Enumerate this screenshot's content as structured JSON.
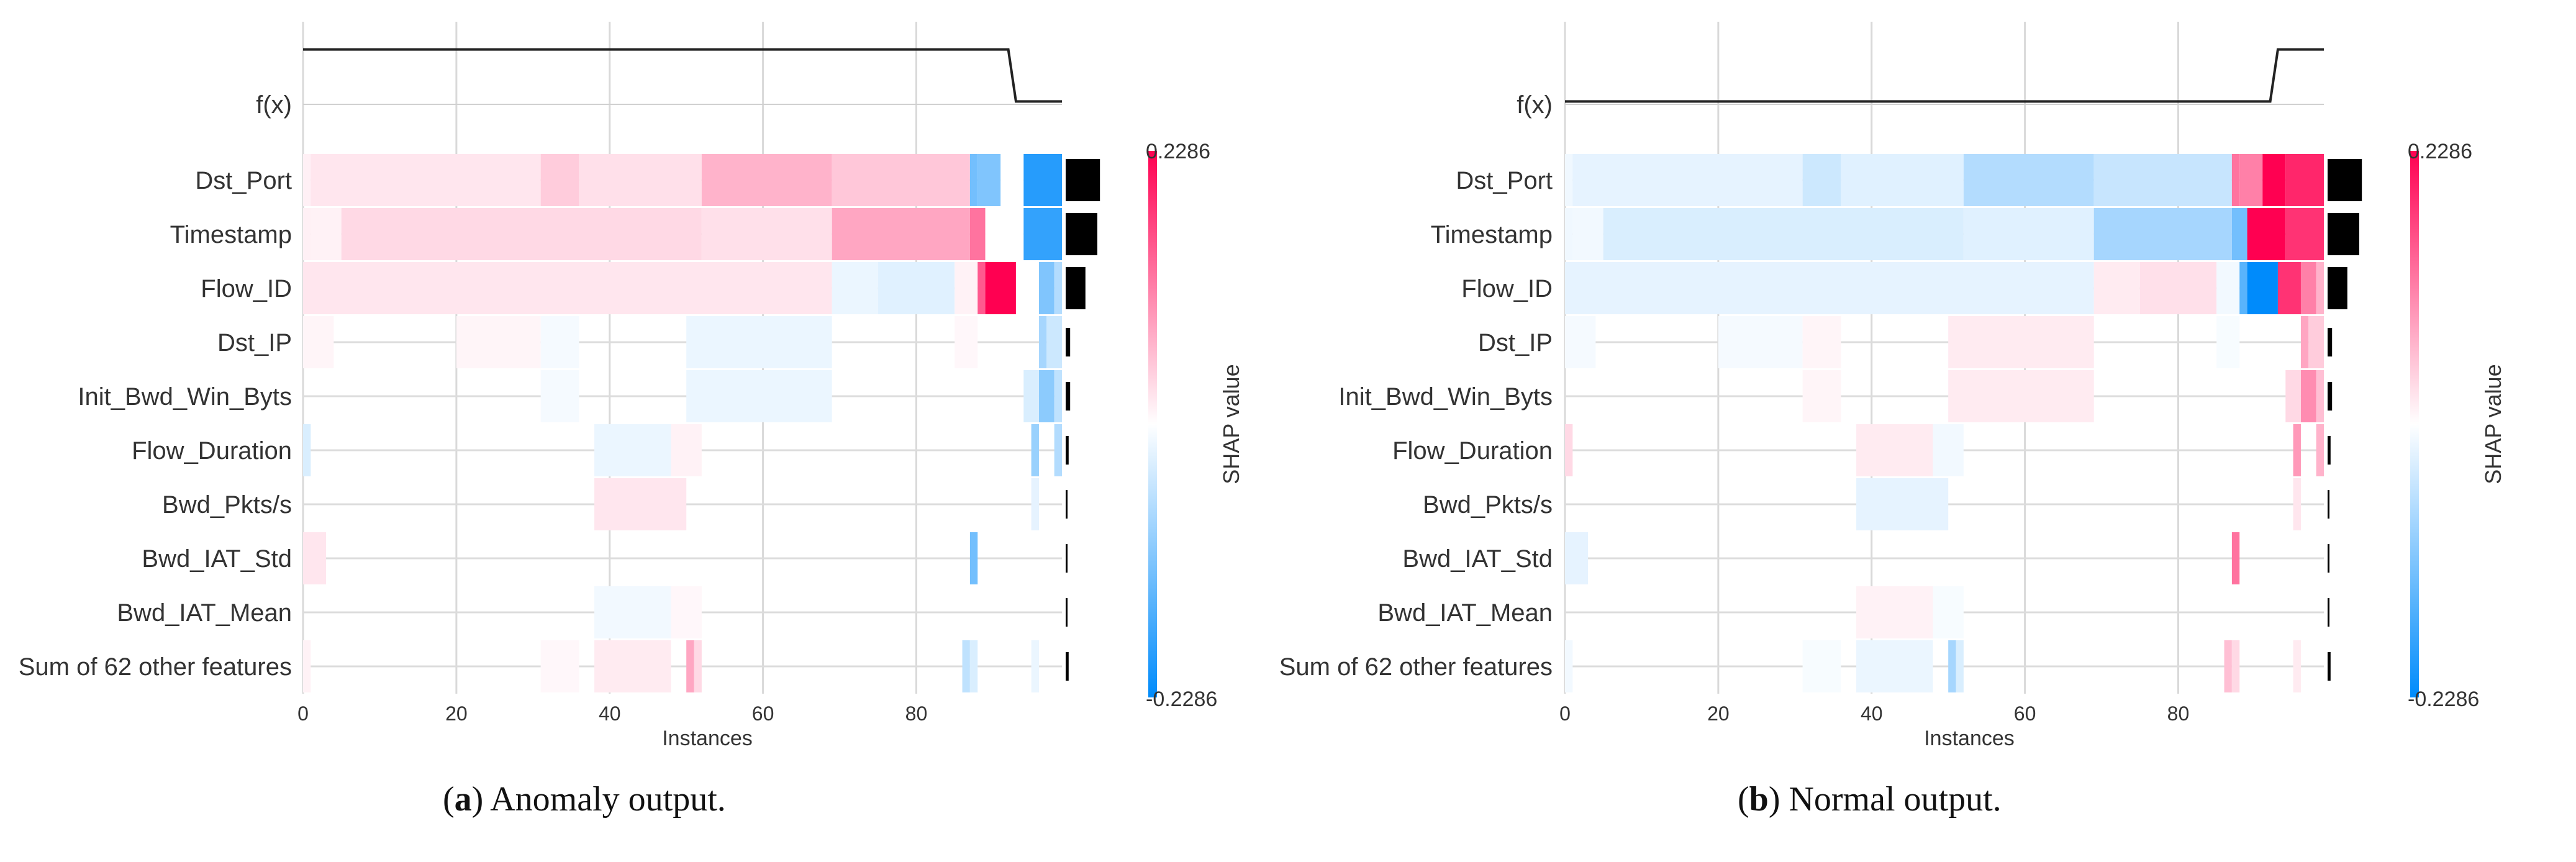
{
  "captions": [
    {
      "letter": "a",
      "text": "Anomaly output."
    },
    {
      "letter": "b",
      "text": "Normal output."
    }
  ],
  "chart_data": [
    {
      "type": "heatmap",
      "title": "Anomaly output.",
      "xlabel": "Instances",
      "xlim": [
        0,
        99
      ],
      "xticks": [
        0,
        20,
        40,
        60,
        80
      ],
      "fx_label": "f(x)",
      "fx_values": {
        "x": [
          0,
          92,
          93,
          99
        ],
        "y": [
          0.95,
          0.95,
          0.05,
          0.05
        ]
      },
      "features": [
        "Dst_Port",
        "Timestamp",
        "Flow_ID",
        "Dst_IP",
        "Init_Bwd_Win_Byts",
        "Flow_Duration",
        "Bwd_Pkts/s",
        "Bwd_IAT_Std",
        "Bwd_IAT_Mean",
        "Sum of 62 other features"
      ],
      "importance": [
        0.92,
        0.85,
        0.53,
        0.12,
        0.12,
        0.08,
        0.02,
        0.02,
        0.02,
        0.08
      ],
      "segments": [
        [
          [
            0,
            1,
            0.06
          ],
          [
            1,
            31,
            0.1
          ],
          [
            31,
            36,
            0.2
          ],
          [
            36,
            52,
            0.12
          ],
          [
            52,
            69,
            0.3
          ],
          [
            69,
            87,
            0.22
          ],
          [
            87,
            88,
            -0.55
          ],
          [
            88,
            91,
            -0.5
          ],
          [
            91,
            94,
            0
          ],
          [
            94,
            99,
            -0.85
          ]
        ],
        [
          [
            0,
            1,
            0.06
          ],
          [
            1,
            5,
            0.05
          ],
          [
            5,
            52,
            0.15
          ],
          [
            52,
            69,
            0.12
          ],
          [
            69,
            87,
            0.35
          ],
          [
            87,
            89,
            0.55
          ],
          [
            89,
            94,
            0
          ],
          [
            94,
            99,
            -0.8
          ]
        ],
        [
          [
            0,
            69,
            0.1
          ],
          [
            69,
            75,
            -0.08
          ],
          [
            75,
            85,
            -0.12
          ],
          [
            85,
            88,
            0.05
          ],
          [
            88,
            89,
            0.65
          ],
          [
            89,
            93,
            1
          ],
          [
            93,
            96,
            0
          ],
          [
            96,
            98,
            -0.5
          ],
          [
            98,
            99,
            -0.3
          ]
        ],
        [
          [
            0,
            4,
            0.04
          ],
          [
            20,
            31,
            0.04
          ],
          [
            31,
            36,
            -0.04
          ],
          [
            50,
            69,
            -0.08
          ],
          [
            85,
            88,
            0.03
          ],
          [
            96,
            97,
            -0.35
          ],
          [
            97,
            99,
            -0.2
          ]
        ],
        [
          [
            31,
            36,
            -0.04
          ],
          [
            50,
            69,
            -0.08
          ],
          [
            94,
            96,
            -0.15
          ],
          [
            96,
            98,
            -0.45
          ],
          [
            98,
            99,
            -0.25
          ]
        ],
        [
          [
            0,
            1,
            -0.15
          ],
          [
            38,
            48,
            -0.08
          ],
          [
            48,
            52,
            0.05
          ],
          [
            95,
            96,
            -0.4
          ],
          [
            98,
            99,
            -0.3
          ]
        ],
        [
          [
            38,
            50,
            0.1
          ],
          [
            95,
            96,
            -0.1
          ]
        ],
        [
          [
            0,
            3,
            0.1
          ],
          [
            87,
            88,
            -0.55
          ]
        ],
        [
          [
            38,
            50,
            -0.05
          ],
          [
            48,
            52,
            0.03
          ]
        ],
        [
          [
            0,
            1,
            0.05
          ],
          [
            31,
            36,
            0.03
          ],
          [
            38,
            48,
            0.08
          ],
          [
            50,
            51,
            0.35
          ],
          [
            51,
            52,
            0.15
          ],
          [
            86,
            87,
            -0.25
          ],
          [
            87,
            88,
            -0.15
          ],
          [
            95,
            96,
            -0.08
          ]
        ]
      ],
      "colorbar": {
        "label": "SHAP value",
        "max": "0.2286",
        "min": "-0.2286"
      }
    },
    {
      "type": "heatmap",
      "title": "Normal output.",
      "xlabel": "Instances",
      "xlim": [
        0,
        99
      ],
      "xticks": [
        0,
        20,
        40,
        60,
        80
      ],
      "fx_label": "f(x)",
      "fx_values": {
        "x": [
          0,
          92,
          93,
          99
        ],
        "y": [
          0.05,
          0.05,
          0.95,
          0.95
        ]
      },
      "features": [
        "Dst_Port",
        "Timestamp",
        "Flow_ID",
        "Dst_IP",
        "Init_Bwd_Win_Byts",
        "Flow_Duration",
        "Bwd_Pkts/s",
        "Bwd_IAT_Std",
        "Bwd_IAT_Mean",
        "Sum of 62 other features"
      ],
      "importance": [
        0.92,
        0.85,
        0.53,
        0.12,
        0.12,
        0.08,
        0.02,
        0.02,
        0.02,
        0.08
      ],
      "segments": [
        [
          [
            0,
            1,
            -0.06
          ],
          [
            1,
            31,
            -0.1
          ],
          [
            31,
            36,
            -0.2
          ],
          [
            36,
            52,
            -0.12
          ],
          [
            52,
            69,
            -0.3
          ],
          [
            69,
            87,
            -0.22
          ],
          [
            87,
            88,
            0.55
          ],
          [
            88,
            91,
            0.5
          ],
          [
            91,
            94,
            1
          ],
          [
            94,
            99,
            0.85
          ]
        ],
        [
          [
            0,
            1,
            -0.06
          ],
          [
            1,
            5,
            -0.05
          ],
          [
            5,
            52,
            -0.15
          ],
          [
            52,
            69,
            -0.12
          ],
          [
            69,
            87,
            -0.35
          ],
          [
            87,
            89,
            -0.55
          ],
          [
            89,
            94,
            1
          ],
          [
            94,
            99,
            0.8
          ]
        ],
        [
          [
            0,
            69,
            -0.1
          ],
          [
            69,
            75,
            0.08
          ],
          [
            75,
            85,
            0.12
          ],
          [
            85,
            88,
            -0.05
          ],
          [
            88,
            89,
            -0.65
          ],
          [
            89,
            93,
            -1
          ],
          [
            93,
            96,
            0.8
          ],
          [
            96,
            98,
            0.5
          ],
          [
            98,
            99,
            0.3
          ]
        ],
        [
          [
            0,
            4,
            -0.04
          ],
          [
            20,
            31,
            -0.04
          ],
          [
            31,
            36,
            0.04
          ],
          [
            50,
            69,
            0.08
          ],
          [
            85,
            88,
            -0.03
          ],
          [
            96,
            97,
            0.35
          ],
          [
            97,
            99,
            0.2
          ]
        ],
        [
          [
            31,
            36,
            0.04
          ],
          [
            50,
            69,
            0.08
          ],
          [
            94,
            96,
            0.15
          ],
          [
            96,
            98,
            0.45
          ],
          [
            98,
            99,
            0.25
          ]
        ],
        [
          [
            0,
            1,
            0.15
          ],
          [
            38,
            48,
            0.08
          ],
          [
            48,
            52,
            -0.05
          ],
          [
            95,
            96,
            0.4
          ],
          [
            98,
            99,
            0.3
          ]
        ],
        [
          [
            38,
            50,
            -0.1
          ],
          [
            95,
            96,
            0.1
          ]
        ],
        [
          [
            0,
            3,
            -0.1
          ],
          [
            87,
            88,
            0.55
          ]
        ],
        [
          [
            38,
            50,
            0.05
          ],
          [
            48,
            52,
            -0.03
          ]
        ],
        [
          [
            0,
            1,
            -0.05
          ],
          [
            31,
            36,
            -0.03
          ],
          [
            38,
            48,
            -0.08
          ],
          [
            50,
            51,
            -0.35
          ],
          [
            51,
            52,
            -0.15
          ],
          [
            86,
            87,
            0.25
          ],
          [
            87,
            88,
            0.15
          ],
          [
            95,
            96,
            0.08
          ]
        ]
      ],
      "colorbar": {
        "label": "SHAP value",
        "max": "0.2286",
        "min": "-0.2286"
      }
    }
  ]
}
